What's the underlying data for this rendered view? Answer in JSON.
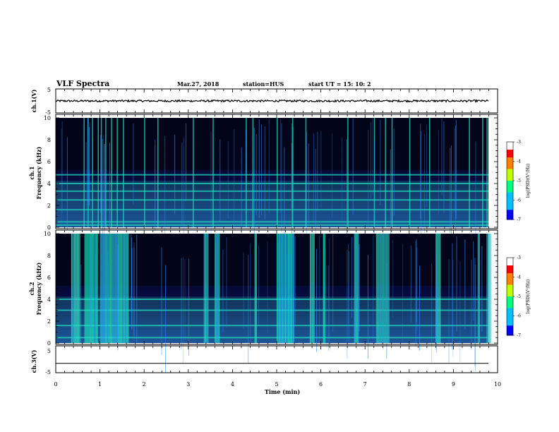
{
  "header": {
    "title": "VLF Spectra",
    "date": "Mar.27, 2018",
    "station": "station=HUS",
    "start_time": "start UT =  15: 10: 2"
  },
  "colors": {
    "background": "#000000",
    "noise_low": "#1020b0",
    "noise_mid": "#3090ff",
    "burst": "#20e0c0",
    "trace": "#000000"
  },
  "chart_data": [
    {
      "type": "line",
      "name": "ch1-waveform",
      "ylabel": "ch.1(V)",
      "ylim": [
        -5,
        5
      ],
      "y_ticks": [
        "5",
        "-5"
      ],
      "approx_level": 0,
      "amplitude": 0.4
    },
    {
      "type": "heatmap",
      "name": "ch1-spectrogram",
      "ylabel": "Frequency (kHz)",
      "channel_label": "ch.1",
      "ylim": [
        0,
        10
      ],
      "y_ticks": [
        "0",
        "2",
        "4",
        "6",
        "8",
        "10"
      ],
      "colorbar": {
        "label": "log(PSD)(V²/Hz)",
        "ticks": [
          "-3",
          "-4",
          "-5",
          "-6",
          "-7"
        ],
        "range": [
          -7,
          -3
        ]
      },
      "bursts_min": [
        0.63,
        0.72,
        0.82,
        0.95,
        1.02,
        1.12,
        1.25,
        1.38,
        1.52,
        2.0,
        2.3,
        3.1,
        3.55,
        4.3,
        4.45,
        5.0,
        5.35,
        5.65,
        6.6,
        7.2,
        7.45,
        7.6,
        8.0,
        8.45,
        9.35,
        9.65,
        9.75
      ],
      "strong_bands_khz": [
        0.2,
        0.5,
        1.6,
        2.5,
        3.3,
        4.0,
        4.8
      ]
    },
    {
      "type": "heatmap",
      "name": "ch2-spectrogram",
      "ylabel": "Frequency (kHz)",
      "channel_label": "ch.2",
      "ylim": [
        0,
        10
      ],
      "y_ticks": [
        "0",
        "2",
        "4",
        "6",
        "8",
        "10"
      ],
      "colorbar": {
        "label": "log(PSD)(V²/Hz)",
        "ticks": [
          "-3",
          "-4",
          "-5",
          "-6",
          "-7"
        ],
        "range": [
          -7,
          -3
        ]
      },
      "burst_regions_min": [
        [
          0.35,
          0.55
        ],
        [
          0.65,
          0.95
        ],
        [
          1.0,
          1.65
        ],
        [
          3.35,
          3.45
        ],
        [
          3.6,
          3.7
        ],
        [
          4.5,
          4.55
        ],
        [
          5.0,
          5.4
        ],
        [
          5.75,
          5.85
        ],
        [
          6.05,
          6.1
        ],
        [
          6.75,
          6.85
        ],
        [
          7.25,
          7.55
        ],
        [
          8.6,
          8.7
        ],
        [
          9.55,
          9.6
        ],
        [
          9.75,
          9.85
        ]
      ],
      "strong_bands_khz": [
        0.5,
        1.6,
        3.0,
        4.0
      ]
    },
    {
      "type": "line",
      "name": "ch3-waveform",
      "ylabel": "ch.3(V)",
      "ylim": [
        -5,
        5
      ],
      "y_ticks": [
        "5",
        "-5"
      ],
      "approx_level": -1.5
    }
  ],
  "x_axis": {
    "label": "Time (min)",
    "range": [
      0,
      10
    ],
    "ticks": [
      "0",
      "1",
      "2",
      "3",
      "4",
      "5",
      "6",
      "7",
      "8",
      "9",
      "10"
    ]
  }
}
